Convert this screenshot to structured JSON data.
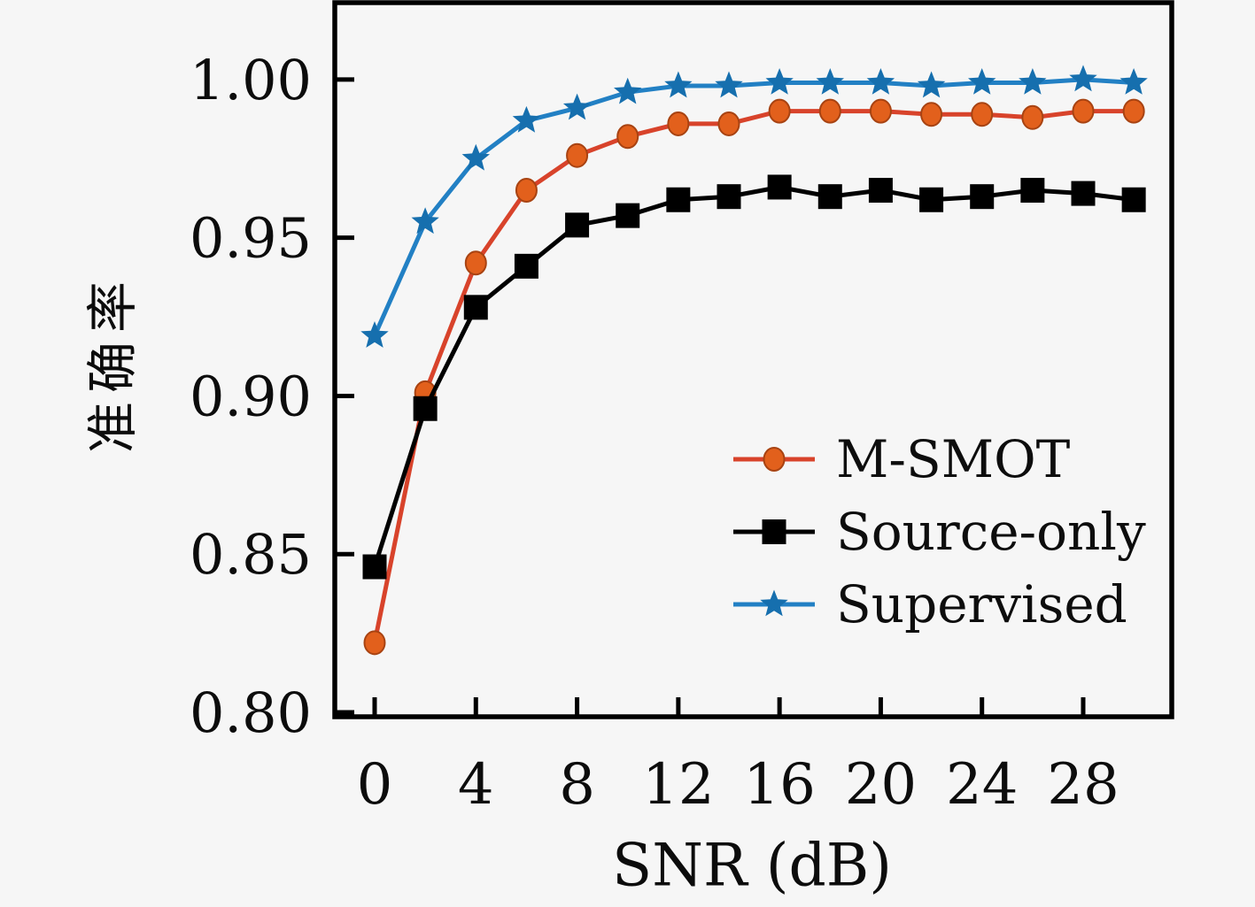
{
  "chart_data": {
    "type": "line",
    "title": "",
    "xlabel": "SNR (dB)",
    "ylabel": "准确率",
    "grid": false,
    "legend_position": "center-right",
    "xlim": [
      -1.575,
      31.5
    ],
    "ylim": [
      0.7986,
      1.0243
    ],
    "xticks": [
      0,
      4,
      8,
      12,
      16,
      20,
      24,
      28
    ],
    "yticks": [
      1.0,
      0.95,
      0.9,
      0.85,
      0.8
    ],
    "x": [
      0,
      2,
      4,
      6,
      8,
      10,
      12,
      14,
      16,
      18,
      20,
      22,
      24,
      26,
      28,
      30
    ],
    "series": [
      {
        "name": "M-SMOT",
        "marker": "circle",
        "line_color": "#d8432b",
        "marker_color": "#e2601c",
        "marker_edge": "#a84312",
        "values": [
          0.822,
          0.901,
          0.942,
          0.965,
          0.976,
          0.982,
          0.986,
          0.986,
          0.99,
          0.99,
          0.99,
          0.989,
          0.989,
          0.988,
          0.99,
          0.99
        ]
      },
      {
        "name": "Source-only",
        "marker": "square",
        "line_color": "#000000",
        "marker_color": "#000000",
        "marker_edge": "#000000",
        "values": [
          0.846,
          0.896,
          0.928,
          0.941,
          0.954,
          0.957,
          0.962,
          0.963,
          0.966,
          0.963,
          0.965,
          0.962,
          0.963,
          0.965,
          0.964,
          0.962
        ]
      },
      {
        "name": "Supervised",
        "marker": "star",
        "line_color": "#2280c4",
        "marker_color": "#166fae",
        "marker_edge": "#166fae",
        "values": [
          0.919,
          0.955,
          0.975,
          0.987,
          0.991,
          0.996,
          0.998,
          0.998,
          0.999,
          0.999,
          0.999,
          0.998,
          0.999,
          0.999,
          1.0,
          0.999
        ]
      }
    ]
  }
}
